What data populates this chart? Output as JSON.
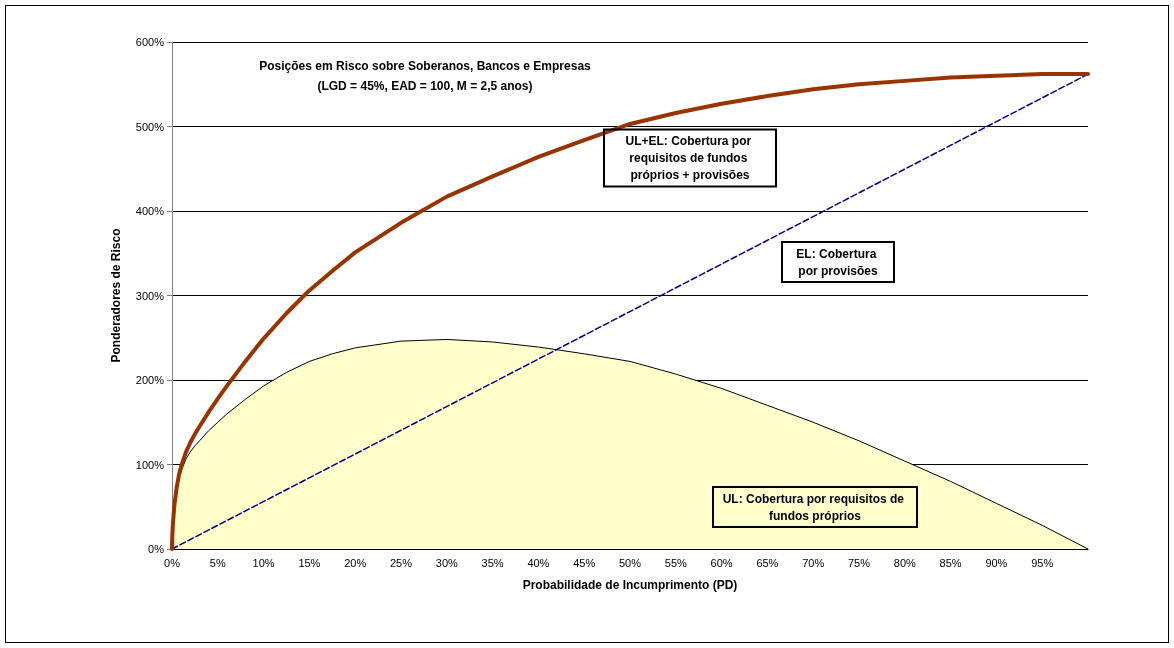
{
  "chart_data": {
    "type": "line",
    "title": "Posições em Risco sobre Soberanos, Bancos e Empresas",
    "subtitle": "(LGD = 45%, EAD = 100, M = 2,5 anos)",
    "xlabel": "Probabilidade de Incumprimento (PD)",
    "ylabel": "Ponderadores de Risco",
    "xlim": [
      0,
      100
    ],
    "xticks": [
      {
        "value": 0,
        "label": "0%"
      },
      {
        "value": 5,
        "label": "5%"
      },
      {
        "value": 10,
        "label": "10%"
      },
      {
        "value": 15,
        "label": "15%"
      },
      {
        "value": 20,
        "label": "20%"
      },
      {
        "value": 25,
        "label": "25%"
      },
      {
        "value": 30,
        "label": "30%"
      },
      {
        "value": 35,
        "label": "35%"
      },
      {
        "value": 40,
        "label": "40%"
      },
      {
        "value": 45,
        "label": "45%"
      },
      {
        "value": 50,
        "label": "50%"
      },
      {
        "value": 55,
        "label": "55%"
      },
      {
        "value": 60,
        "label": "60%"
      },
      {
        "value": 65,
        "label": "65%"
      },
      {
        "value": 70,
        "label": "70%"
      },
      {
        "value": 75,
        "label": "75%"
      },
      {
        "value": 80,
        "label": "80%"
      },
      {
        "value": 85,
        "label": "85%"
      },
      {
        "value": 90,
        "label": "90%"
      },
      {
        "value": 95,
        "label": "95%"
      }
    ],
    "ylim": [
      0,
      600
    ],
    "yticks": [
      {
        "value": 0,
        "label": "0%"
      },
      {
        "value": 100,
        "label": "100%"
      },
      {
        "value": 200,
        "label": "200%"
      },
      {
        "value": 300,
        "label": "300%"
      },
      {
        "value": 400,
        "label": "400%"
      },
      {
        "value": 500,
        "label": "500%"
      },
      {
        "value": 600,
        "label": "600%"
      }
    ],
    "grid": "y",
    "legend": false,
    "marker": "none",
    "series": [
      {
        "name": "UL+EL: Cobertura por requisitos de fundos próprios + provisões",
        "line_style": "solid",
        "color": "#993300",
        "x": [
          0,
          0.03,
          0.1,
          0.25,
          0.5,
          0.75,
          1,
          1.5,
          2,
          2.5,
          3,
          4,
          5,
          6,
          8,
          10,
          12.5,
          15,
          17.5,
          20,
          25,
          30,
          35,
          40,
          45,
          50,
          55,
          60,
          65,
          70,
          75,
          80,
          85,
          90,
          95,
          100
        ],
        "values": [
          0,
          15,
          30,
          51,
          72,
          87,
          98,
          114,
          126,
          136,
          145,
          162,
          178,
          193,
          222,
          249,
          279,
          306,
          329,
          351,
          386,
          417,
          441,
          464,
          484,
          503,
          516,
          527,
          536,
          544,
          550,
          554,
          558,
          560,
          562,
          562
        ]
      },
      {
        "name": "EL: Cobertura por provisões",
        "line_style": "dashed",
        "color": "#000080",
        "x": [
          0,
          100
        ],
        "values": [
          0,
          562
        ]
      },
      {
        "name": "UL: Cobertura por requisitos de fundos próprios",
        "type": "area",
        "line_style": "solid",
        "color": "#ffffcc",
        "x": [
          0,
          0.03,
          0.1,
          0.25,
          0.5,
          0.75,
          1,
          1.5,
          2,
          2.5,
          3,
          4,
          5,
          6,
          8,
          10,
          12.5,
          15,
          17.5,
          20,
          25,
          30,
          35,
          40,
          45,
          50,
          55,
          60,
          65,
          70,
          75,
          80,
          85,
          90,
          95,
          100
        ],
        "values": [
          0,
          14,
          30,
          50,
          70,
          83,
          92,
          106,
          115,
          122,
          128,
          140,
          150,
          160,
          177,
          193,
          209,
          222,
          231,
          238,
          246,
          248,
          245,
          239,
          231,
          222,
          207,
          190,
          170,
          150,
          128,
          104,
          80,
          54,
          28,
          0
        ]
      }
    ]
  }
}
